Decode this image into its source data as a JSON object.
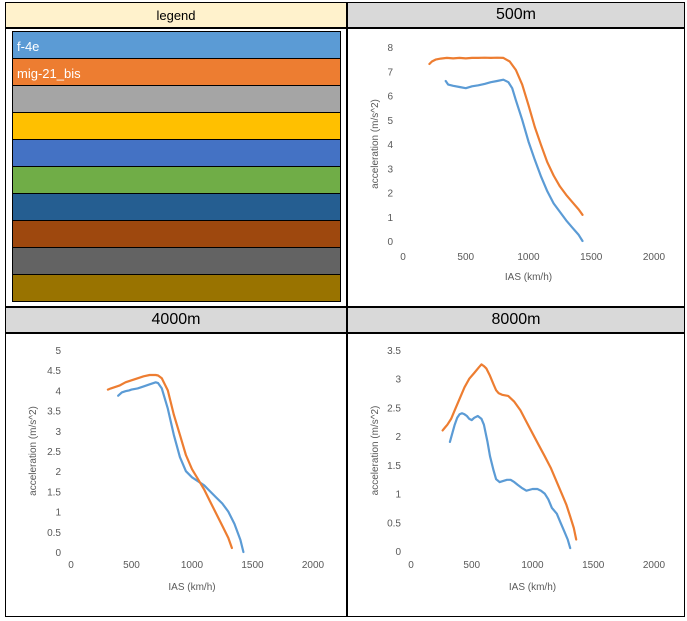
{
  "legend": {
    "title": "legend",
    "entries": [
      {
        "label": "f-4e",
        "color": "#5b9bd5"
      },
      {
        "label": "mig-21_bis",
        "color": "#ed7d31"
      },
      {
        "label": "",
        "color": "#a5a5a5"
      },
      {
        "label": "",
        "color": "#ffc000"
      },
      {
        "label": "",
        "color": "#4472c4"
      },
      {
        "label": "",
        "color": "#70ad47"
      },
      {
        "label": "",
        "color": "#255e91"
      },
      {
        "label": "",
        "color": "#9e480e"
      },
      {
        "label": "",
        "color": "#636363"
      },
      {
        "label": "",
        "color": "#997300"
      }
    ]
  },
  "chart_data": [
    {
      "type": "line",
      "title": "500m",
      "xlabel": "IAS (km/h)",
      "ylabel": "acceleration (m/s^2)",
      "xlim": [
        0,
        2000
      ],
      "ylim": [
        0,
        8
      ],
      "xticks": [
        0,
        500,
        1000,
        1500,
        2000
      ],
      "yticks": [
        0,
        1,
        2,
        3,
        4,
        5,
        6,
        7,
        8
      ],
      "grid": false,
      "series": [
        {
          "name": "f-4e",
          "color": "#5b9bd5",
          "x": [
            340,
            360,
            400,
            450,
            500,
            550,
            600,
            650,
            700,
            750,
            800,
            840,
            870,
            900,
            950,
            1000,
            1050,
            1100,
            1150,
            1200,
            1250,
            1300,
            1350,
            1400,
            1430
          ],
          "y": [
            6.6,
            6.45,
            6.4,
            6.35,
            6.3,
            6.38,
            6.42,
            6.48,
            6.55,
            6.6,
            6.65,
            6.55,
            6.3,
            5.8,
            5.0,
            4.1,
            3.35,
            2.65,
            2.05,
            1.55,
            1.2,
            0.85,
            0.55,
            0.25,
            0.0
          ]
        },
        {
          "name": "mig-21_bis",
          "color": "#ed7d31",
          "x": [
            210,
            230,
            260,
            300,
            350,
            400,
            450,
            500,
            550,
            600,
            650,
            700,
            750,
            800,
            850,
            900,
            950,
            1000,
            1050,
            1100,
            1150,
            1200,
            1250,
            1300,
            1350,
            1400,
            1430
          ],
          "y": [
            7.3,
            7.4,
            7.48,
            7.52,
            7.55,
            7.53,
            7.55,
            7.53,
            7.55,
            7.55,
            7.56,
            7.55,
            7.56,
            7.55,
            7.4,
            7.05,
            6.45,
            5.6,
            4.7,
            3.95,
            3.25,
            2.7,
            2.25,
            1.9,
            1.6,
            1.3,
            1.08
          ]
        }
      ]
    },
    {
      "type": "line",
      "title": "4000m",
      "xlabel": "IAS (km/h)",
      "ylabel": "acceleration (m/s^2)",
      "xlim": [
        0,
        2000
      ],
      "ylim": [
        0,
        5
      ],
      "xticks": [
        0,
        500,
        1000,
        1500,
        2000
      ],
      "yticks": [
        0,
        0.5,
        1,
        1.5,
        2,
        2.5,
        3,
        3.5,
        4,
        4.5,
        5
      ],
      "grid": false,
      "series": [
        {
          "name": "f-4e",
          "color": "#5b9bd5",
          "x": [
            390,
            420,
            450,
            480,
            500,
            550,
            600,
            650,
            700,
            720,
            750,
            800,
            850,
            900,
            950,
            1000,
            1050,
            1100,
            1150,
            1200,
            1250,
            1300,
            1350,
            1400,
            1425
          ],
          "y": [
            3.87,
            3.95,
            3.98,
            4.0,
            4.02,
            4.05,
            4.1,
            4.15,
            4.2,
            4.18,
            4.05,
            3.55,
            2.9,
            2.35,
            2.0,
            1.85,
            1.75,
            1.65,
            1.5,
            1.35,
            1.2,
            1.0,
            0.7,
            0.3,
            0.0
          ]
        },
        {
          "name": "mig-21_bis",
          "color": "#ed7d31",
          "x": [
            305,
            330,
            360,
            400,
            450,
            500,
            550,
            600,
            650,
            700,
            720,
            750,
            800,
            850,
            900,
            950,
            1000,
            1050,
            1100,
            1150,
            1200,
            1250,
            1300,
            1330
          ],
          "y": [
            4.02,
            4.05,
            4.08,
            4.12,
            4.2,
            4.25,
            4.3,
            4.35,
            4.38,
            4.38,
            4.37,
            4.3,
            4.0,
            3.4,
            2.9,
            2.4,
            2.05,
            1.8,
            1.55,
            1.25,
            0.95,
            0.65,
            0.35,
            0.1
          ]
        }
      ]
    },
    {
      "type": "line",
      "title": "8000m",
      "xlabel": "IAS (km/h)",
      "ylabel": "acceleration (m/s^2)",
      "xlim": [
        0,
        2000
      ],
      "ylim": [
        0,
        3.5
      ],
      "xticks": [
        0,
        500,
        1000,
        1500,
        2000
      ],
      "yticks": [
        0,
        0.5,
        1,
        1.5,
        2,
        2.5,
        3,
        3.5
      ],
      "grid": false,
      "series": [
        {
          "name": "f-4e",
          "color": "#5b9bd5",
          "x": [
            320,
            340,
            360,
            380,
            400,
            420,
            440,
            460,
            480,
            500,
            520,
            550,
            580,
            600,
            630,
            650,
            680,
            700,
            730,
            760,
            790,
            820,
            850,
            880,
            910,
            950,
            1000,
            1040,
            1070,
            1100,
            1130,
            1160,
            1200,
            1230,
            1260,
            1290,
            1310
          ],
          "y": [
            1.9,
            2.05,
            2.2,
            2.32,
            2.38,
            2.4,
            2.38,
            2.35,
            2.3,
            2.28,
            2.32,
            2.35,
            2.3,
            2.2,
            1.9,
            1.65,
            1.4,
            1.25,
            1.2,
            1.22,
            1.24,
            1.24,
            1.2,
            1.15,
            1.1,
            1.05,
            1.08,
            1.08,
            1.05,
            1.0,
            0.9,
            0.75,
            0.65,
            0.5,
            0.35,
            0.2,
            0.05
          ]
        },
        {
          "name": "mig-21_bis",
          "color": "#ed7d31",
          "x": [
            260,
            280,
            300,
            330,
            360,
            400,
            440,
            480,
            520,
            560,
            580,
            600,
            620,
            650,
            680,
            700,
            720,
            750,
            800,
            850,
            900,
            950,
            1000,
            1050,
            1100,
            1150,
            1200,
            1250,
            1280,
            1310,
            1340,
            1360
          ],
          "y": [
            2.1,
            2.15,
            2.2,
            2.3,
            2.45,
            2.65,
            2.85,
            3.0,
            3.1,
            3.2,
            3.25,
            3.22,
            3.18,
            3.05,
            2.9,
            2.8,
            2.75,
            2.72,
            2.7,
            2.6,
            2.45,
            2.25,
            2.05,
            1.85,
            1.65,
            1.45,
            1.2,
            0.95,
            0.8,
            0.6,
            0.4,
            0.2
          ]
        }
      ]
    }
  ]
}
